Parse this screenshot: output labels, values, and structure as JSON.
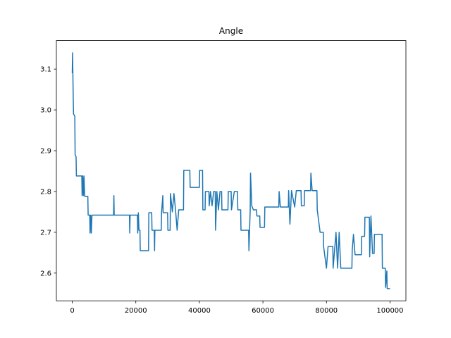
{
  "chart_data": {
    "type": "line",
    "title": "Angle",
    "x": [
      0,
      100,
      300,
      400,
      800,
      900,
      1200,
      1300,
      3000,
      3100,
      3300,
      3500,
      3700,
      3900,
      4900,
      5000,
      5500,
      5600,
      5800,
      6000,
      6200,
      13000,
      13100,
      13200,
      18000,
      18100,
      18200,
      20500,
      20600,
      20800,
      21000,
      21300,
      21400,
      24000,
      24100,
      25000,
      25100,
      25800,
      25900,
      26000,
      28000,
      28100,
      28500,
      28600,
      30000,
      30100,
      30800,
      30900,
      31500,
      32000,
      32500,
      33000,
      33500,
      35000,
      35100,
      37000,
      37100,
      40000,
      40100,
      41000,
      41100,
      41800,
      41900,
      43000,
      43100,
      43500,
      44000,
      44500,
      45000,
      45100,
      45500,
      46000,
      46500,
      47000,
      47100,
      49000,
      49100,
      50000,
      50100,
      51000,
      52000,
      52100,
      53000,
      53100,
      55500,
      55600,
      56000,
      56100,
      56500,
      57000,
      58000,
      58100,
      59000,
      59100,
      60500,
      60600,
      65000,
      65100,
      65500,
      68000,
      68100,
      68500,
      69000,
      70000,
      70500,
      72000,
      72100,
      73000,
      73100,
      75000,
      75100,
      75500,
      77000,
      77100,
      78000,
      79000,
      79100,
      80000,
      80500,
      82000,
      82100,
      83000,
      83500,
      84000,
      84500,
      88000,
      88100,
      88500,
      89000,
      91000,
      91100,
      92000,
      92100,
      93500,
      93600,
      94000,
      94500,
      95000,
      95100,
      97500,
      97600,
      98500,
      98600,
      99000,
      99100,
      100000
    ],
    "series": [
      {
        "color": "#1f77b4",
        "values": [
          3.09,
          3.14,
          3.03,
          2.99,
          2.985,
          2.89,
          2.885,
          2.838,
          2.838,
          2.79,
          2.838,
          2.79,
          2.838,
          2.788,
          2.788,
          2.742,
          2.742,
          2.698,
          2.742,
          2.698,
          2.742,
          2.742,
          2.79,
          2.742,
          2.742,
          2.698,
          2.742,
          2.742,
          2.698,
          2.748,
          2.705,
          2.705,
          2.655,
          2.655,
          2.748,
          2.748,
          2.705,
          2.705,
          2.655,
          2.705,
          2.705,
          2.748,
          2.79,
          2.748,
          2.748,
          2.705,
          2.705,
          2.795,
          2.75,
          2.795,
          2.755,
          2.705,
          2.755,
          2.755,
          2.852,
          2.852,
          2.81,
          2.81,
          2.852,
          2.852,
          2.755,
          2.755,
          2.8,
          2.8,
          2.765,
          2.8,
          2.765,
          2.8,
          2.8,
          2.705,
          2.8,
          2.755,
          2.8,
          2.8,
          2.755,
          2.755,
          2.8,
          2.8,
          2.755,
          2.8,
          2.8,
          2.755,
          2.755,
          2.705,
          2.705,
          2.655,
          2.755,
          2.845,
          2.765,
          2.755,
          2.755,
          2.74,
          2.74,
          2.712,
          2.712,
          2.762,
          2.762,
          2.8,
          2.762,
          2.762,
          2.802,
          2.72,
          2.802,
          2.762,
          2.802,
          2.802,
          2.765,
          2.765,
          2.802,
          2.802,
          2.845,
          2.802,
          2.802,
          2.755,
          2.7,
          2.7,
          2.665,
          2.612,
          2.665,
          2.665,
          2.612,
          2.7,
          2.612,
          2.7,
          2.612,
          2.612,
          2.655,
          2.695,
          2.645,
          2.645,
          2.69,
          2.69,
          2.737,
          2.737,
          2.64,
          2.74,
          2.648,
          2.648,
          2.695,
          2.695,
          2.612,
          2.612,
          2.565,
          2.605,
          2.562,
          2.562
        ]
      }
    ],
    "xlim": [
      -5000,
      105000
    ],
    "ylim": [
      2.532,
      3.17
    ],
    "xticks": [
      0,
      20000,
      40000,
      60000,
      80000,
      100000
    ],
    "yticks": [
      2.6,
      2.7,
      2.8,
      2.9,
      {
        "value": 3,
        "label": "3.0"
      },
      3.1
    ]
  }
}
